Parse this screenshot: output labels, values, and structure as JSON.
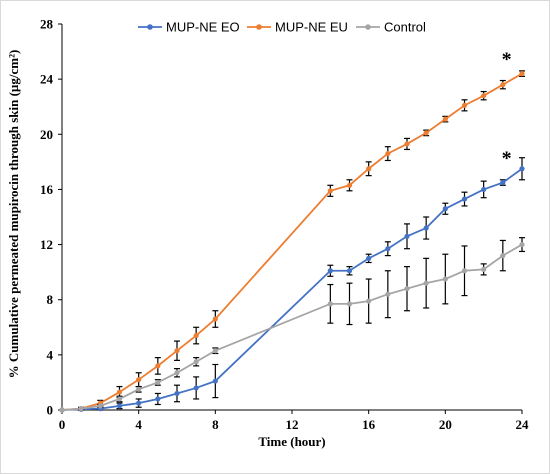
{
  "chart_data": {
    "type": "line",
    "xlabel": "Time (hour)",
    "ylabel": "% Cumulative permeated mupirocin through skin (µg/cm²)",
    "xlim": [
      0,
      24
    ],
    "ylim": [
      0,
      28
    ],
    "x_ticks": [
      0,
      4,
      8,
      12,
      16,
      20,
      24
    ],
    "y_ticks": [
      0,
      4,
      8,
      12,
      16,
      20,
      24,
      28
    ],
    "grid": false,
    "legend_position": "top",
    "series": [
      {
        "name": "MUP-NE EO",
        "color": "#4472c4",
        "x": [
          0,
          1,
          2,
          3,
          4,
          5,
          6,
          7,
          8,
          14,
          15,
          16,
          17,
          18,
          19,
          20,
          21,
          22,
          23,
          24
        ],
        "y": [
          0,
          0.05,
          0.1,
          0.3,
          0.5,
          0.8,
          1.2,
          1.6,
          2.1,
          10.1,
          10.1,
          11.0,
          11.7,
          12.6,
          13.2,
          14.6,
          15.3,
          16.0,
          16.5,
          17.5
        ],
        "err": [
          0,
          0.05,
          0.1,
          0.2,
          0.3,
          0.4,
          0.6,
          0.8,
          1.2,
          0.4,
          0.3,
          0.3,
          0.5,
          0.9,
          0.8,
          0.4,
          0.5,
          0.6,
          0.2,
          0.8
        ]
      },
      {
        "name": "MUP-NE EU",
        "color": "#ed7d31",
        "x": [
          0,
          1,
          2,
          3,
          4,
          5,
          6,
          7,
          8,
          14,
          15,
          16,
          17,
          18,
          19,
          20,
          21,
          22,
          23,
          24
        ],
        "y": [
          0,
          0.1,
          0.5,
          1.3,
          2.2,
          3.2,
          4.3,
          5.4,
          6.6,
          15.9,
          16.3,
          17.5,
          18.6,
          19.3,
          20.1,
          21.1,
          22.1,
          22.8,
          23.6,
          24.4
        ],
        "err": [
          0,
          0.1,
          0.2,
          0.4,
          0.5,
          0.6,
          0.7,
          0.6,
          0.6,
          0.4,
          0.4,
          0.5,
          0.5,
          0.4,
          0.2,
          0.2,
          0.4,
          0.3,
          0.3,
          0.2
        ]
      },
      {
        "name": "Control",
        "color": "#a5a5a5",
        "x": [
          0,
          1,
          2,
          3,
          4,
          5,
          6,
          7,
          8,
          14,
          15,
          16,
          17,
          18,
          19,
          20,
          21,
          22,
          23,
          24
        ],
        "y": [
          0,
          0.1,
          0.3,
          0.8,
          1.5,
          2.0,
          2.7,
          3.5,
          4.3,
          7.7,
          7.7,
          7.9,
          8.4,
          8.8,
          9.2,
          9.5,
          10.1,
          10.2,
          11.2,
          12.0
        ],
        "err": [
          0,
          0.05,
          0.1,
          0.2,
          0.2,
          0.2,
          0.3,
          0.3,
          0.2,
          1.4,
          1.5,
          1.6,
          1.7,
          1.6,
          1.8,
          1.8,
          1.8,
          0.4,
          1.1,
          0.5
        ]
      }
    ],
    "annotations": [
      {
        "text": "*",
        "x": 23.2,
        "y": 25.5
      },
      {
        "text": "*",
        "x": 23.2,
        "y": 18.3
      }
    ]
  }
}
